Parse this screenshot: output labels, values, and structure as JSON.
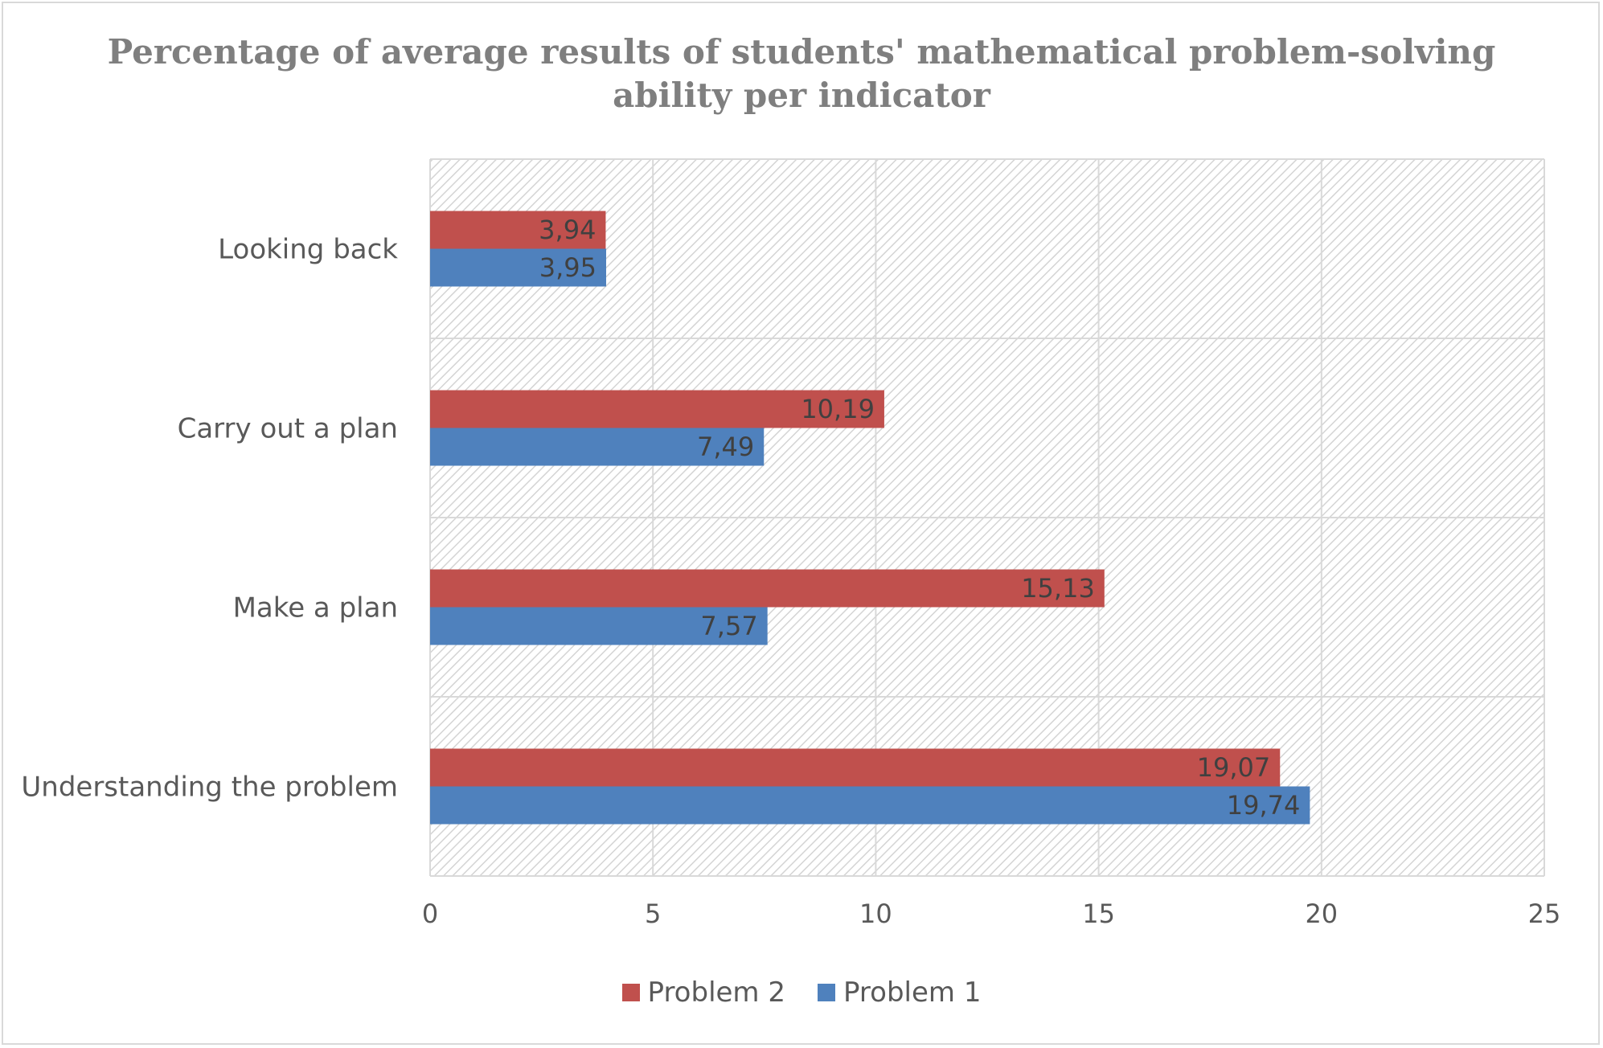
{
  "chart_data": {
    "type": "bar",
    "orientation": "horizontal",
    "title": "Percentage of average results of students' mathematical problem-solving ability per indicator",
    "title_lines": [
      "Percentage of average results of students' mathematical problem-solving",
      "ability per indicator"
    ],
    "categories": [
      "Understanding the problem",
      "Make a plan",
      "Carry out a plan",
      "Looking back"
    ],
    "series": [
      {
        "name": "Problem 2",
        "color": "#c0504d",
        "values": [
          19.07,
          15.13,
          10.19,
          3.94
        ],
        "labels": [
          "19,07",
          "15,13",
          "10,19",
          "3,94"
        ]
      },
      {
        "name": "Problem 1",
        "color": "#4f81bd",
        "values": [
          19.74,
          7.57,
          7.49,
          3.95
        ],
        "labels": [
          "19,74",
          "7,57",
          "7,49",
          "3,95"
        ]
      }
    ],
    "xlim": [
      0,
      25
    ],
    "xticks": [
      0,
      5,
      10,
      15,
      20,
      25
    ],
    "xtick_labels": [
      "0",
      "5",
      "10",
      "15",
      "20",
      "25"
    ],
    "xlabel": "",
    "ylabel": "",
    "grid": true,
    "plot_background": "hatched light gray",
    "legend_position": "bottom"
  }
}
